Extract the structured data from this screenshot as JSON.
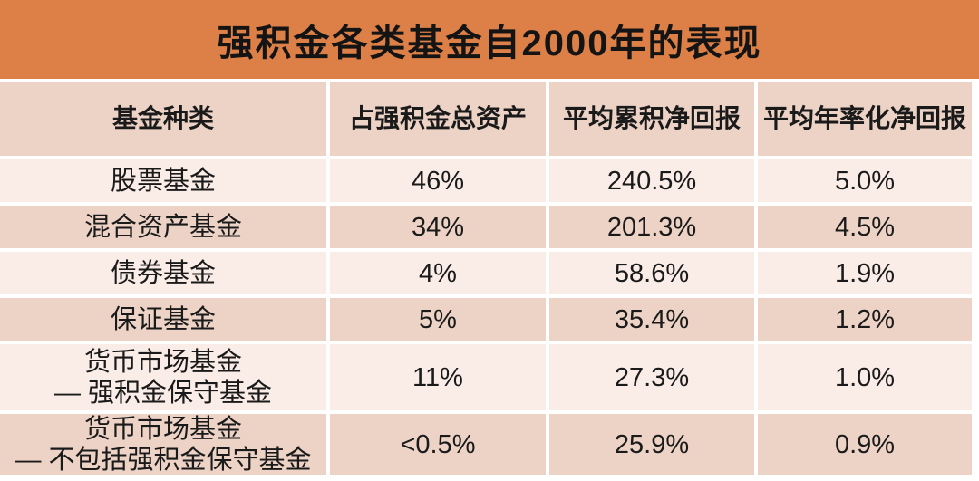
{
  "title": "强积金各类基金自2000年的表现",
  "colors": {
    "title_bg": "#DD8047",
    "band_dark": "#EDD3C6",
    "band_light": "#FAECE6",
    "text": "#1A1A1A",
    "background": "#FFFFFF"
  },
  "table": {
    "headers": [
      "基金种类",
      "占强积金总资产",
      "平均累积净回报",
      "平均年率化净回报"
    ],
    "rows": [
      {
        "cells": [
          "股票基金",
          "46%",
          "240.5%",
          "5.0%"
        ]
      },
      {
        "cells": [
          "混合资产基金",
          "34%",
          "201.3%",
          "4.5%"
        ]
      },
      {
        "cells": [
          "债券基金",
          "4%",
          "58.6%",
          "1.9%"
        ]
      },
      {
        "cells": [
          "保证基金",
          "5%",
          "35.4%",
          "1.2%"
        ]
      },
      {
        "cells": [
          "货币市场基金\n— 强积金保守基金",
          "11%",
          "27.3%",
          "1.0%"
        ]
      },
      {
        "cells": [
          "货币市场基金\n— 不包括强积金保守基金",
          "<0.5%",
          "25.9%",
          "0.9%"
        ]
      }
    ]
  },
  "chart_data": {
    "type": "table",
    "title": "强积金各类基金自2000年的表现",
    "columns": [
      "基金种类",
      "占强积金总资产",
      "平均累积净回报",
      "平均年率化净回报"
    ],
    "rows": [
      [
        "股票基金",
        "46%",
        "240.5%",
        "5.0%"
      ],
      [
        "混合资产基金",
        "34%",
        "201.3%",
        "4.5%"
      ],
      [
        "债券基金",
        "4%",
        "58.6%",
        "1.9%"
      ],
      [
        "保证基金",
        "5%",
        "35.4%",
        "1.2%"
      ],
      [
        "货币市场基金 — 强积金保守基金",
        "11%",
        "27.3%",
        "1.0%"
      ],
      [
        "货币市场基金 — 不包括强积金保守基金",
        "<0.5%",
        "25.9%",
        "0.9%"
      ]
    ]
  }
}
